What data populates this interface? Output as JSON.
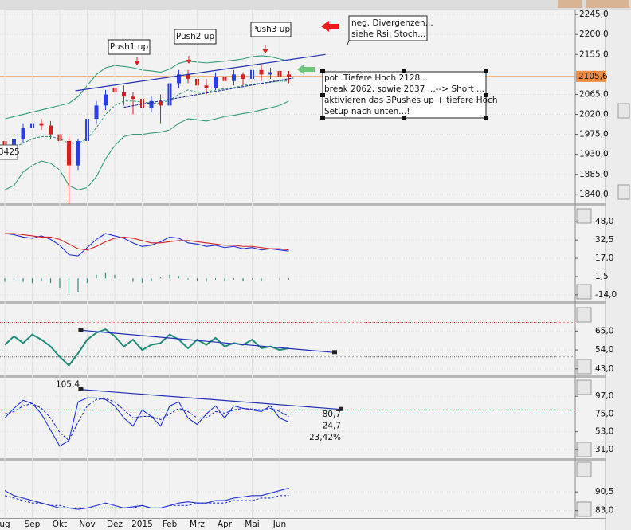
{
  "chart_data": [
    {
      "type": "candlestick",
      "categories": [
        "ug",
        null,
        null,
        "Sep",
        null,
        null,
        "Okt",
        null,
        null,
        "Nov",
        null,
        null,
        "Dez",
        null,
        null,
        "2015",
        null,
        null,
        "Feb",
        null,
        null,
        "Mrz",
        null,
        null,
        "Apr",
        null,
        null,
        "Mai",
        null,
        null,
        "Jun",
        null
      ],
      "open": [
        1960,
        1935,
        1965,
        1990,
        2000,
        1995,
        1975,
        1960,
        1905,
        1960,
        2010,
        2040,
        2080,
        2070,
        2060,
        2055,
        2035,
        2050,
        2040,
        2090,
        2110,
        2100,
        2085,
        2080,
        2105,
        2095,
        2110,
        2100,
        2120,
        2110,
        2118,
        2110
      ],
      "high": [
        1970,
        1975,
        2000,
        2010,
        2010,
        2005,
        1990,
        1970,
        1965,
        2015,
        2050,
        2075,
        2090,
        2085,
        2070,
        2065,
        2060,
        2065,
        2100,
        2120,
        2120,
        2110,
        2100,
        2115,
        2110,
        2120,
        2115,
        2130,
        2130,
        2125,
        2122,
        2118
      ],
      "low": [
        1925,
        1925,
        1955,
        1980,
        1985,
        1965,
        1950,
        1820,
        1895,
        1955,
        2000,
        2030,
        2055,
        2040,
        2020,
        2000,
        2025,
        2000,
        2035,
        2080,
        2090,
        2070,
        2065,
        2075,
        2080,
        2085,
        2085,
        2095,
        2095,
        2100,
        2095,
        2090
      ],
      "close": [
        1935,
        1965,
        1990,
        2000,
        1995,
        1975,
        1960,
        1905,
        1960,
        2010,
        2040,
        2065,
        2070,
        2060,
        2055,
        2035,
        2050,
        2040,
        2090,
        2110,
        2100,
        2085,
        2080,
        2105,
        2095,
        2110,
        2100,
        2120,
        2110,
        2115,
        2105,
        2105
      ],
      "up_color": "#2a3fe0",
      "down_color": "#d42020",
      "series": [
        {
          "color": "#2f9c7c",
          "dashed": false,
          "values": [
            2010,
            2015,
            2020,
            2025,
            2030,
            2035,
            2040,
            2045,
            2060,
            2085,
            2110,
            2125,
            2130,
            2128,
            2125,
            2120,
            2118,
            2115,
            2122,
            2135,
            2140,
            2138,
            2136,
            2138,
            2140,
            2142,
            2145,
            2150,
            2152,
            2150,
            2145,
            2140
          ]
        },
        {
          "color": "#2f9c7c",
          "dashed": false,
          "values": [
            1850,
            1860,
            1890,
            1905,
            1915,
            1910,
            1895,
            1860,
            1850,
            1855,
            1880,
            1920,
            1950,
            1970,
            1975,
            1975,
            1978,
            1980,
            1985,
            2000,
            2010,
            2008,
            2005,
            2010,
            2015,
            2018,
            2022,
            2025,
            2030,
            2035,
            2040,
            2050
          ]
        },
        {
          "color": "#2f9c7c",
          "dashed": true,
          "values": [
            1935,
            1945,
            1955,
            1965,
            1970,
            1970,
            1965,
            1955,
            1955,
            1965,
            1990,
            2020,
            2040,
            2050,
            2050,
            2048,
            2045,
            2045,
            2052,
            2065,
            2075,
            2070,
            2070,
            2075,
            2078,
            2080,
            2085,
            2088,
            2090,
            2092,
            2095,
            2095
          ]
        }
      ],
      "trendlines": [
        {
          "color": "#2030b0",
          "dashed": false,
          "x": [
            7.7,
            35
          ],
          "y": [
            2073,
            2155
          ]
        },
        {
          "color": "#2030b0",
          "dashed": true,
          "x": [
            13,
            31.5
          ],
          "y": [
            2036,
            2102
          ]
        }
      ],
      "price_line": {
        "value": 2105.6,
        "label": "2105,6",
        "color": "#f08a3c"
      },
      "ylim": [
        1820,
        2256
      ],
      "yticks": [
        {
          "value": 2245,
          "label": "2245,0"
        },
        {
          "value": 2200,
          "label": "2200,0"
        },
        {
          "value": 2155,
          "label": "2155,0"
        },
        {
          "value": 2065,
          "label": "2065,0"
        },
        {
          "value": 2020,
          "label": "2020,0"
        },
        {
          "value": 1975,
          "label": "1975,0"
        },
        {
          "value": 1930,
          "label": "1930,0"
        },
        {
          "value": 1885,
          "label": "1885,0"
        },
        {
          "value": 1840,
          "label": "1840,0"
        }
      ],
      "grid": true,
      "annotations": [
        "Push1 up",
        "Push2 up",
        "Push3 up"
      ],
      "notes": [
        [
          "neg. Divergenzen...",
          "siehe Rsi, Stoch..."
        ],
        [
          "pot. Tiefere Hoch 2128...",
          "break 2062, sowie 2037 ...--> Short ...",
          "aktivieren das 3Pushes up + tiefere Hoch",
          "Setup nach unten...!"
        ]
      ],
      "left_readout": "3425"
    },
    {
      "type": "line",
      "series": [
        {
          "color": "#2030d0",
          "dashed": false,
          "values": [
            38,
            37,
            35,
            34,
            36,
            33,
            28,
            20,
            19,
            26,
            33,
            38,
            36,
            34,
            30,
            27,
            28,
            31,
            35,
            34,
            30,
            29,
            27,
            28,
            26,
            27,
            25,
            26,
            24,
            25,
            24,
            23
          ]
        },
        {
          "color": "#d02020",
          "dashed": false,
          "values": [
            38,
            38,
            37,
            36,
            35,
            35,
            33,
            29,
            25,
            24,
            27,
            31,
            34,
            35,
            34,
            32,
            30,
            30,
            31,
            32,
            32,
            31,
            30,
            29,
            28,
            28,
            27,
            27,
            26,
            25,
            25,
            24
          ]
        }
      ],
      "histogram": {
        "color": "#2f8c7c",
        "values": [
          -3,
          -2,
          -3,
          -4,
          -2,
          -4,
          -8,
          -14,
          -12,
          -4,
          3,
          5,
          3,
          0,
          -3,
          -4,
          -2,
          1,
          3,
          2,
          -1,
          -2,
          -3,
          -1,
          -2,
          -1,
          -2,
          -1,
          -2,
          0,
          -1,
          -1
        ]
      },
      "ylim": [
        -19.5,
        61
      ],
      "yticks": [
        {
          "value": 48,
          "label": "48,0"
        },
        {
          "value": 32.5,
          "label": "32,5"
        },
        {
          "value": 17,
          "label": "17,0"
        },
        {
          "value": 1.5,
          "label": "1,5"
        },
        {
          "value": -14,
          "label": "-14,0"
        }
      ],
      "grid": true
    },
    {
      "type": "line",
      "series": [
        {
          "color": "#1f8a78",
          "dashed": false,
          "values": [
            57,
            62,
            58,
            63,
            60,
            56,
            50,
            45,
            52,
            60,
            64,
            66,
            62,
            56,
            60,
            54,
            57,
            58,
            63,
            60,
            55,
            60,
            57,
            61,
            56,
            58,
            57,
            60,
            55,
            56,
            54,
            55
          ]
        }
      ],
      "trendlines": [
        {
          "color": "#2030b0",
          "dashed": false,
          "x": [
            8.3,
            36
          ],
          "y": [
            65.5,
            52.5
          ]
        }
      ],
      "ref_lines": [
        {
          "value": 70,
          "color": "#e03030"
        },
        {
          "value": 50,
          "color": "#555555"
        }
      ],
      "ylim": [
        39.7,
        80.4
      ],
      "yticks": [
        {
          "value": 65,
          "label": "65,0"
        },
        {
          "value": 54,
          "label": "54,0"
        },
        {
          "value": 43,
          "label": "43,0"
        }
      ],
      "grid": true
    },
    {
      "type": "line",
      "series": [
        {
          "color": "#2030d0",
          "dashed": false,
          "values": [
            70,
            82,
            92,
            88,
            75,
            55,
            35,
            42,
            90,
            95,
            95,
            93,
            85,
            70,
            60,
            80,
            72,
            60,
            85,
            90,
            70,
            62,
            75,
            85,
            70,
            85,
            82,
            80,
            78,
            85,
            70,
            65
          ]
        },
        {
          "color": "#2030d0",
          "dashed": true,
          "values": [
            75,
            78,
            85,
            88,
            82,
            70,
            52,
            42,
            65,
            85,
            93,
            94,
            90,
            80,
            70,
            72,
            72,
            68,
            75,
            82,
            78,
            70,
            70,
            78,
            76,
            80,
            82,
            81,
            80,
            82,
            78,
            72
          ]
        }
      ],
      "trendlines": [
        {
          "color": "#2030b0",
          "dashed": false,
          "x": [
            8.3,
            36.7
          ],
          "y": [
            105.4,
            80.7
          ]
        }
      ],
      "trend_label": {
        "value": 105.4,
        "label": "105,4"
      },
      "readouts": [
        {
          "value": 80.7,
          "label": "80,7"
        },
        {
          "value": 24.7,
          "label": "24,7"
        },
        {
          "value": 23.42,
          "label": "23,42%"
        }
      ],
      "ref_lines": [
        {
          "value": 80,
          "color": "#e03030"
        }
      ],
      "ylim": [
        20,
        120
      ],
      "yticks": [
        {
          "value": 97,
          "label": "97,0"
        },
        {
          "value": 75,
          "label": "75,0"
        },
        {
          "value": 53,
          "label": "53,0"
        },
        {
          "value": 31,
          "label": "31,0"
        }
      ],
      "grid": true
    },
    {
      "type": "line",
      "series": [
        {
          "color": "#2030d0",
          "dashed": false,
          "values": [
            91,
            89,
            88,
            87,
            86,
            85,
            84,
            84,
            83.5,
            84,
            85,
            86,
            85,
            84,
            84.5,
            85,
            84,
            84,
            85,
            86,
            86.5,
            86,
            86,
            87,
            87,
            88,
            88.5,
            89,
            89,
            90,
            91,
            92
          ]
        },
        {
          "color": "#2030d0",
          "dashed": true,
          "values": [
            89,
            88,
            87,
            86,
            86,
            85,
            85,
            84,
            84,
            84,
            84,
            84,
            84,
            84,
            84,
            85,
            84,
            84,
            85,
            85,
            85,
            86,
            86,
            86,
            86,
            87,
            87,
            87,
            88,
            88,
            89,
            89
          ]
        }
      ],
      "ylim": [
        80,
        103
      ],
      "yticks": [
        {
          "value": 90.5,
          "label": "90,5"
        },
        {
          "value": 83,
          "label": "83,0"
        }
      ],
      "grid": true
    }
  ]
}
